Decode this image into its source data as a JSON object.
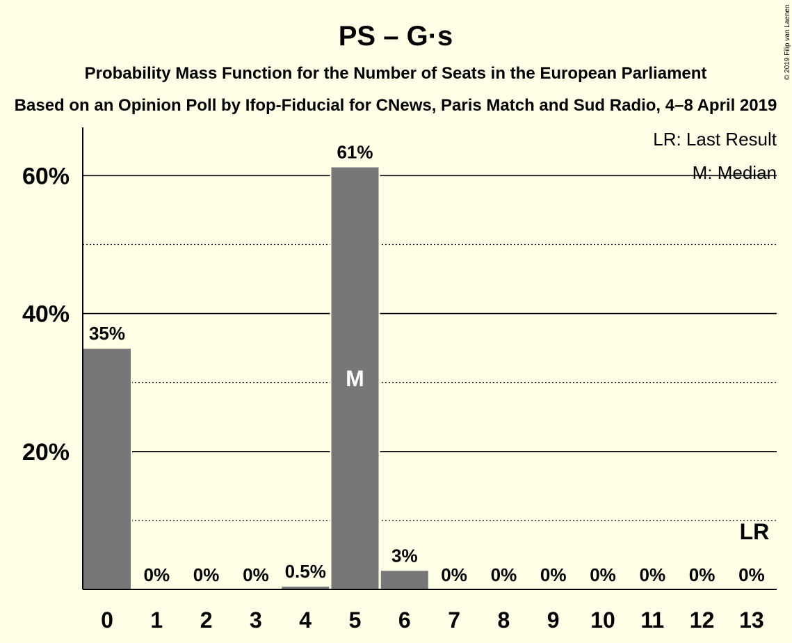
{
  "chart_data": {
    "type": "bar",
    "title": "PS – G·s",
    "subtitle": "Probability Mass Function for the Number of Seats in the European Parliament",
    "subtitle2": "Based on an Opinion Poll by Ifop-Fiducial for CNews, Paris Match and Sud Radio, 4–8 April 2019",
    "copyright": "© 2019 Filip van Laenen",
    "categories": [
      "0",
      "1",
      "2",
      "3",
      "4",
      "5",
      "6",
      "7",
      "8",
      "9",
      "10",
      "11",
      "12",
      "13"
    ],
    "values": [
      35,
      0,
      0,
      0,
      0.5,
      61.3,
      2.8,
      0,
      0,
      0,
      0,
      0,
      0,
      0
    ],
    "value_labels": [
      "35%",
      "0%",
      "0%",
      "0%",
      "0.5%",
      "61%",
      "3%",
      "0%",
      "0%",
      "0%",
      "0%",
      "0%",
      "0%",
      "0%"
    ],
    "ylim": [
      0,
      67
    ],
    "y_ticks": [
      20,
      40,
      60
    ],
    "y_tick_labels": [
      "20%",
      "40%",
      "60%"
    ],
    "y_minor_ticks": [
      10,
      30,
      50
    ],
    "median_seat": "5",
    "median_label": "M",
    "last_result_seat": "13",
    "last_result_label": "LR",
    "legend": {
      "position": "top-right",
      "last_result": "LR: Last Result",
      "median": "M: Median"
    },
    "colors": {
      "background": "#FFFEE6",
      "bar": "#777777",
      "axis": "#000000"
    }
  }
}
